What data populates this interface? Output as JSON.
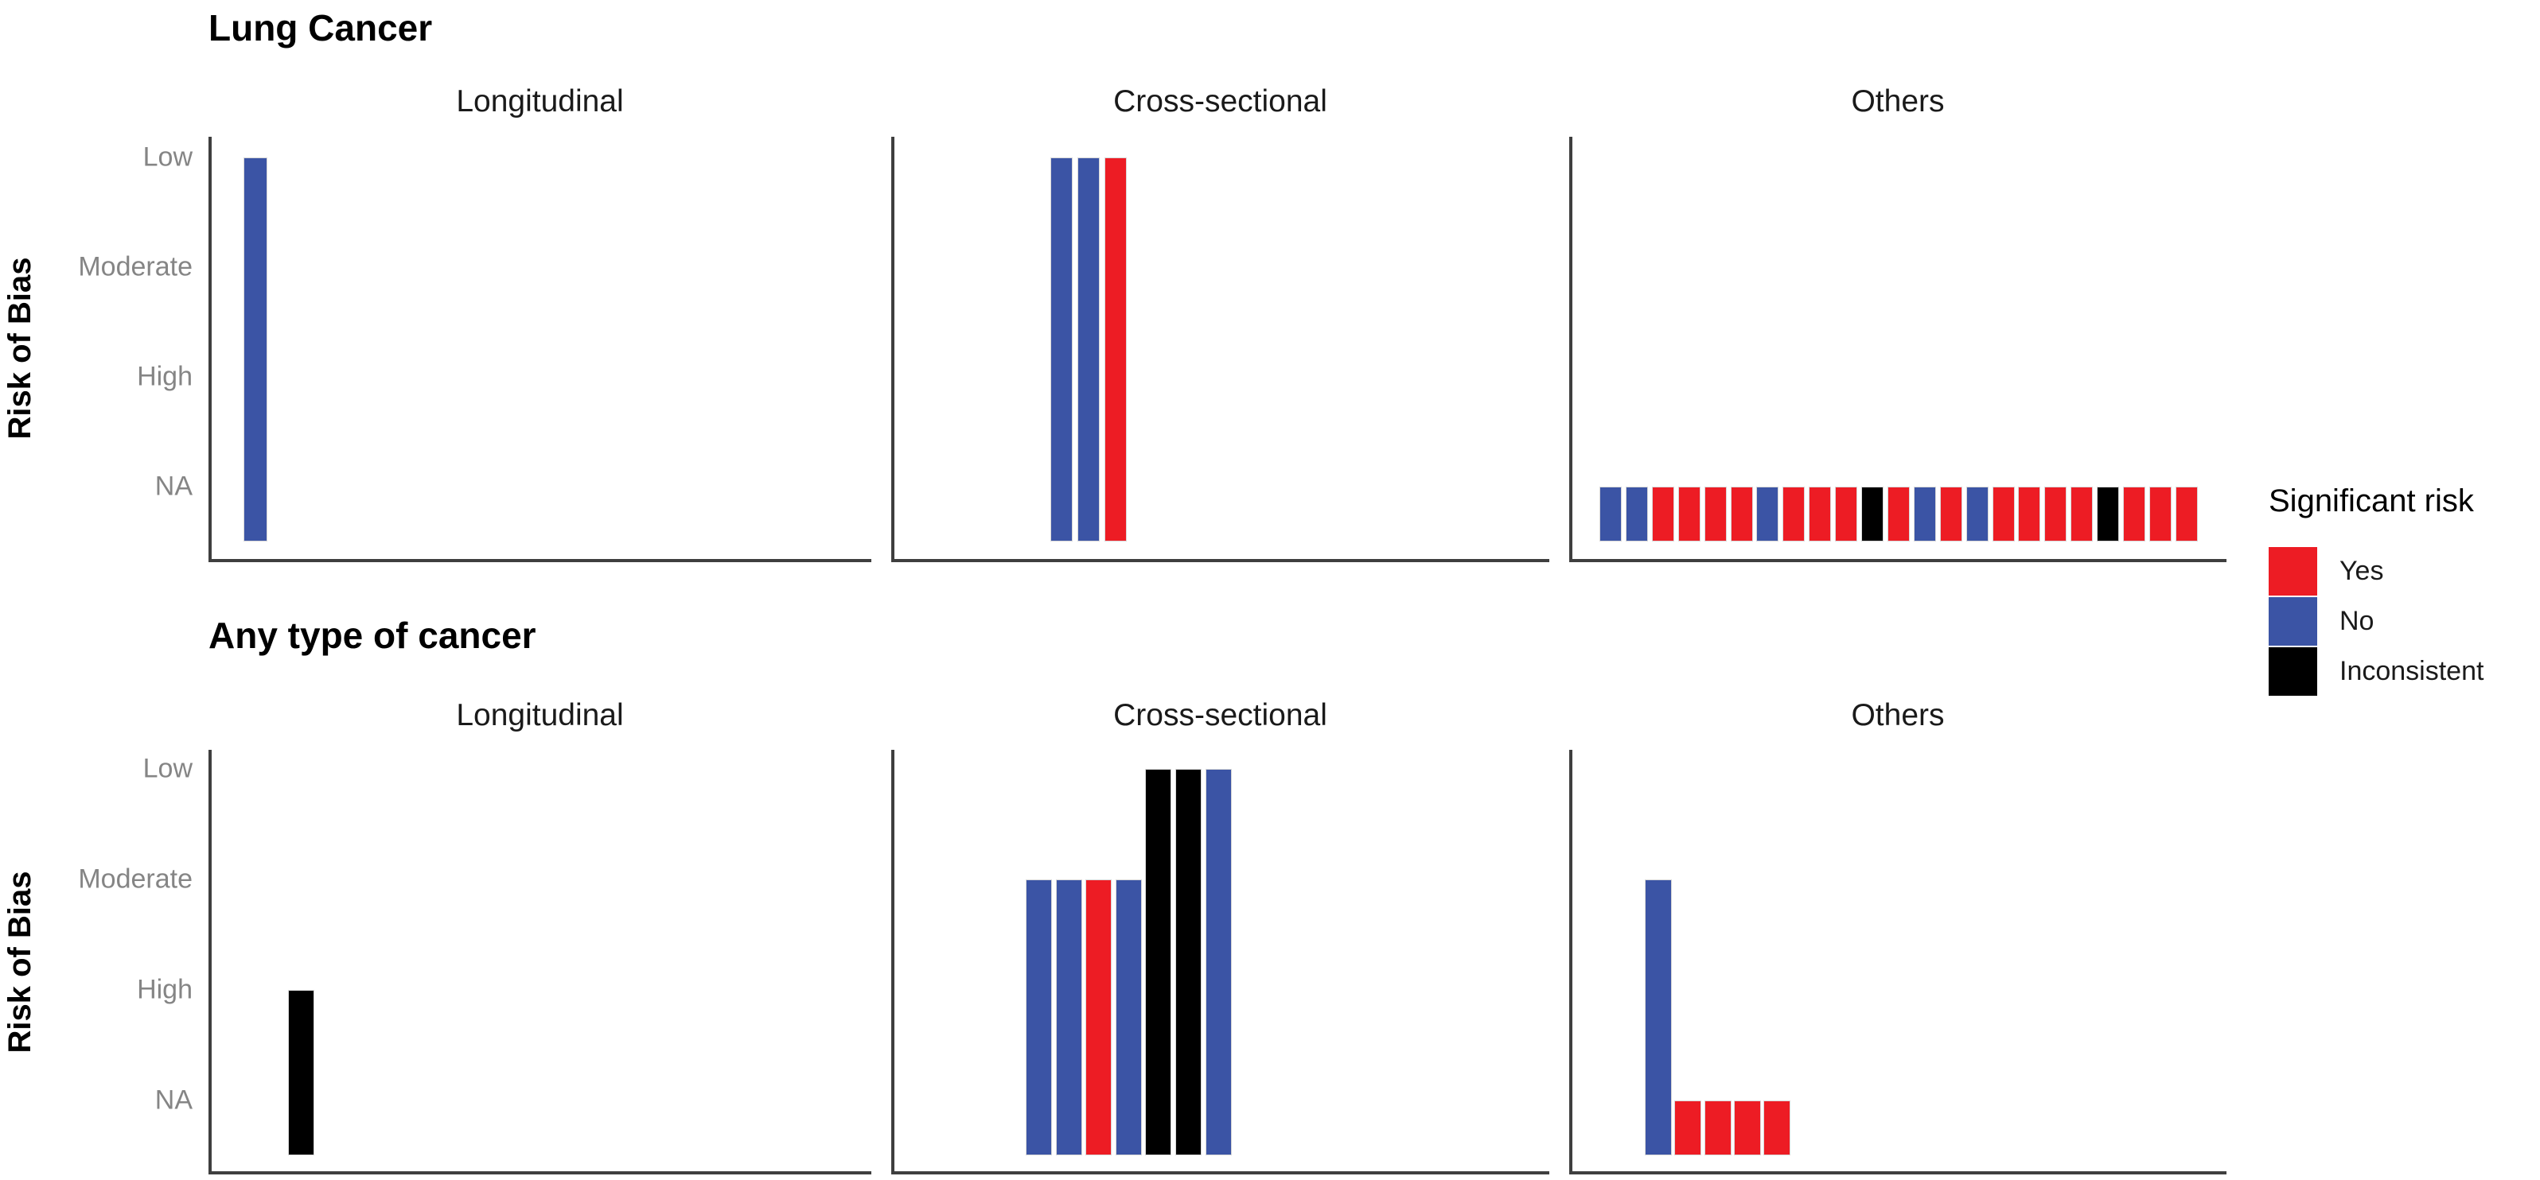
{
  "chart_data": {
    "type": "bar",
    "layout": "facet grid: 2 rows (cancer type) x 3 columns (study design), categorical y, one bar per study, no x tick labels, legend at right",
    "y_axis": {
      "label": "Risk of Bias",
      "categories": [
        "Low",
        "Moderate",
        "High",
        "NA"
      ]
    },
    "x_axis": {
      "label": "",
      "tick_labels": []
    },
    "legend": {
      "title": "Significant risk",
      "entries": [
        {
          "label": "Yes",
          "color": "#ED1C24"
        },
        {
          "label": "No",
          "color": "#3B54A5"
        },
        {
          "label": "Inconsistent",
          "color": "#000000"
        }
      ]
    },
    "rows": [
      {
        "title": "Lung Cancer",
        "panels": [
          {
            "header": "Longitudinal",
            "bars": [
              {
                "risk_of_bias": "Low",
                "significant_risk": "No"
              }
            ]
          },
          {
            "header": "Cross-sectional",
            "bars": [
              {
                "risk_of_bias": "Low",
                "significant_risk": "No"
              },
              {
                "risk_of_bias": "Low",
                "significant_risk": "No"
              },
              {
                "risk_of_bias": "Low",
                "significant_risk": "Yes"
              }
            ]
          },
          {
            "header": "Others",
            "bars": [
              {
                "risk_of_bias": "NA",
                "significant_risk": "No"
              },
              {
                "risk_of_bias": "NA",
                "significant_risk": "No"
              },
              {
                "risk_of_bias": "NA",
                "significant_risk": "Yes"
              },
              {
                "risk_of_bias": "NA",
                "significant_risk": "Yes"
              },
              {
                "risk_of_bias": "NA",
                "significant_risk": "Yes"
              },
              {
                "risk_of_bias": "NA",
                "significant_risk": "Yes"
              },
              {
                "risk_of_bias": "NA",
                "significant_risk": "No"
              },
              {
                "risk_of_bias": "NA",
                "significant_risk": "Yes"
              },
              {
                "risk_of_bias": "NA",
                "significant_risk": "Yes"
              },
              {
                "risk_of_bias": "NA",
                "significant_risk": "Yes"
              },
              {
                "risk_of_bias": "NA",
                "significant_risk": "Inconsistent"
              },
              {
                "risk_of_bias": "NA",
                "significant_risk": "Yes"
              },
              {
                "risk_of_bias": "NA",
                "significant_risk": "No"
              },
              {
                "risk_of_bias": "NA",
                "significant_risk": "Yes"
              },
              {
                "risk_of_bias": "NA",
                "significant_risk": "No"
              },
              {
                "risk_of_bias": "NA",
                "significant_risk": "Yes"
              },
              {
                "risk_of_bias": "NA",
                "significant_risk": "Yes"
              },
              {
                "risk_of_bias": "NA",
                "significant_risk": "Yes"
              },
              {
                "risk_of_bias": "NA",
                "significant_risk": "Yes"
              },
              {
                "risk_of_bias": "NA",
                "significant_risk": "Inconsistent"
              },
              {
                "risk_of_bias": "NA",
                "significant_risk": "Yes"
              },
              {
                "risk_of_bias": "NA",
                "significant_risk": "Yes"
              },
              {
                "risk_of_bias": "NA",
                "significant_risk": "Yes"
              }
            ]
          }
        ]
      },
      {
        "title": "Any type of cancer",
        "panels": [
          {
            "header": "Longitudinal",
            "bars": [
              {
                "risk_of_bias": "High",
                "significant_risk": "Inconsistent"
              }
            ]
          },
          {
            "header": "Cross-sectional",
            "bars": [
              {
                "risk_of_bias": "Moderate",
                "significant_risk": "No"
              },
              {
                "risk_of_bias": "Moderate",
                "significant_risk": "No"
              },
              {
                "risk_of_bias": "Moderate",
                "significant_risk": "Yes"
              },
              {
                "risk_of_bias": "Moderate",
                "significant_risk": "No"
              },
              {
                "risk_of_bias": "Low",
                "significant_risk": "Inconsistent"
              },
              {
                "risk_of_bias": "Low",
                "significant_risk": "Inconsistent"
              },
              {
                "risk_of_bias": "Low",
                "significant_risk": "No"
              }
            ]
          },
          {
            "header": "Others",
            "bars": [
              {
                "risk_of_bias": "Moderate",
                "significant_risk": "No"
              },
              {
                "risk_of_bias": "NA",
                "significant_risk": "Yes"
              },
              {
                "risk_of_bias": "NA",
                "significant_risk": "Yes"
              },
              {
                "risk_of_bias": "NA",
                "significant_risk": "Yes"
              },
              {
                "risk_of_bias": "NA",
                "significant_risk": "Yes"
              }
            ]
          }
        ]
      }
    ]
  }
}
